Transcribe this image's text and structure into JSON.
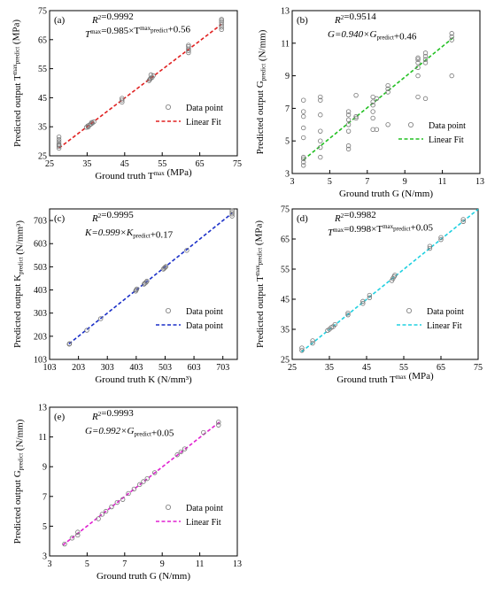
{
  "chart_data": [
    {
      "id": "a",
      "type": "scatter",
      "panel_label": "(a)",
      "xlabel": "Ground truth T^max (MPa)",
      "ylabel": "Predicted output T^max_predict (MPa)",
      "xlim": [
        25,
        75
      ],
      "ylim": [
        25,
        75
      ],
      "xticks": [
        25,
        35,
        45,
        55,
        65,
        75
      ],
      "yticks": [
        25,
        35,
        45,
        55,
        65,
        75
      ],
      "r2_text": "R²=0.9992",
      "eq_text": "T^max=0.985×T^max_predict+0.56",
      "fit": {
        "slope": 0.985,
        "intercept": 0.56,
        "x_range": [
          27.5,
          70.8
        ],
        "color": "#e02020"
      },
      "legend": [
        {
          "label": "Data point",
          "kind": "marker"
        },
        {
          "label": "Linear Fit",
          "kind": "line"
        }
      ],
      "points": [
        [
          27.5,
          27.6
        ],
        [
          27.5,
          28.3
        ],
        [
          27.5,
          29.0
        ],
        [
          27.5,
          29.8
        ],
        [
          27.5,
          30.6
        ],
        [
          27.5,
          31.5
        ],
        [
          27.5,
          28.7
        ],
        [
          34.8,
          34.8
        ],
        [
          35.2,
          35.3
        ],
        [
          35.6,
          35.6
        ],
        [
          36.0,
          35.9
        ],
        [
          36.4,
          36.3
        ],
        [
          36.8,
          36.7
        ],
        [
          35.3,
          34.9
        ],
        [
          36.2,
          36.5
        ],
        [
          44.3,
          43.5
        ],
        [
          44.3,
          44.2
        ],
        [
          44.3,
          44.8
        ],
        [
          51.5,
          50.9
        ],
        [
          51.9,
          51.7
        ],
        [
          52.3,
          52.0
        ],
        [
          52.6,
          52.6
        ],
        [
          52.0,
          52.9
        ],
        [
          51.7,
          51.3
        ],
        [
          62.0,
          60.5
        ],
        [
          62.0,
          61.2
        ],
        [
          62.0,
          61.8
        ],
        [
          62.0,
          62.6
        ],
        [
          62.0,
          63.1
        ],
        [
          70.8,
          68.5
        ],
        [
          70.8,
          69.3
        ],
        [
          70.8,
          70.1
        ],
        [
          70.8,
          70.9
        ],
        [
          70.8,
          71.5
        ],
        [
          70.8,
          72.0
        ]
      ]
    },
    {
      "id": "b",
      "type": "scatter",
      "panel_label": "(b)",
      "xlabel": "Ground truth G (N/mm)",
      "ylabel": "Predicted output G_predict (N/mm)",
      "xlim": [
        3,
        13
      ],
      "ylim": [
        3,
        13
      ],
      "xticks": [
        3,
        5,
        7,
        9,
        11,
        13
      ],
      "yticks": [
        3,
        5,
        7,
        9,
        11,
        13
      ],
      "r2_text": "R²=0.9514",
      "eq_text": "G=0.940×G_predict+0.46",
      "fit": {
        "slope": 0.94,
        "intercept": 0.46,
        "x_range": [
          3.6,
          11.6
        ],
        "color": "#22c022"
      },
      "legend": [
        {
          "label": "Data point",
          "kind": "marker"
        },
        {
          "label": "Linear Fit",
          "kind": "line"
        }
      ],
      "points": [
        [
          3.6,
          3.5
        ],
        [
          3.6,
          3.7
        ],
        [
          3.6,
          3.9
        ],
        [
          3.6,
          4.0
        ],
        [
          3.6,
          5.2
        ],
        [
          3.6,
          5.8
        ],
        [
          3.6,
          6.5
        ],
        [
          3.6,
          6.8
        ],
        [
          3.6,
          7.5
        ],
        [
          4.5,
          4.0
        ],
        [
          4.5,
          4.6
        ],
        [
          4.5,
          5.0
        ],
        [
          4.5,
          5.6
        ],
        [
          4.5,
          6.6
        ],
        [
          4.5,
          7.5
        ],
        [
          4.5,
          7.7
        ],
        [
          6.0,
          4.5
        ],
        [
          6.0,
          4.7
        ],
        [
          6.0,
          5.6
        ],
        [
          6.0,
          6.0
        ],
        [
          6.0,
          6.3
        ],
        [
          6.0,
          6.6
        ],
        [
          6.0,
          6.8
        ],
        [
          6.4,
          6.4
        ],
        [
          6.4,
          6.5
        ],
        [
          6.4,
          7.8
        ],
        [
          7.3,
          5.7
        ],
        [
          7.3,
          6.4
        ],
        [
          7.3,
          6.8
        ],
        [
          7.3,
          7.2
        ],
        [
          7.3,
          7.4
        ],
        [
          7.3,
          7.7
        ],
        [
          7.5,
          5.7
        ],
        [
          7.5,
          7.6
        ],
        [
          8.1,
          6.0
        ],
        [
          8.1,
          8.0
        ],
        [
          8.1,
          8.2
        ],
        [
          8.1,
          8.4
        ],
        [
          9.7,
          7.7
        ],
        [
          9.7,
          9.0
        ],
        [
          9.7,
          9.5
        ],
        [
          9.7,
          9.8
        ],
        [
          9.7,
          10.0
        ],
        [
          9.7,
          10.1
        ],
        [
          10.1,
          7.6
        ],
        [
          10.1,
          9.8
        ],
        [
          10.1,
          10.0
        ],
        [
          10.1,
          10.2
        ],
        [
          10.1,
          10.4
        ],
        [
          11.5,
          9.0
        ],
        [
          11.5,
          11.2
        ],
        [
          11.5,
          11.4
        ],
        [
          11.5,
          11.6
        ]
      ]
    },
    {
      "id": "c",
      "type": "scatter",
      "panel_label": "(c)",
      "xlabel": "Ground truth K (N/mm³)",
      "ylabel": "Predicted output K_predict (N/mm³)",
      "xlim": [
        103,
        753
      ],
      "ylim": [
        103,
        753
      ],
      "xticks": [
        103,
        203,
        303,
        403,
        503,
        603,
        703
      ],
      "yticks": [
        103,
        203,
        303,
        403,
        503,
        603,
        703
      ],
      "r2_text": "R²=0.9995",
      "eq_text": "K=0.999×K_predict+0.17",
      "fit": {
        "slope": 0.999,
        "intercept": 0.17,
        "x_range": [
          170,
          735
        ],
        "color": "#1a2fc8"
      },
      "legend": [
        {
          "label": "Data point",
          "kind": "marker"
        },
        {
          "label": "Data point",
          "kind": "line"
        }
      ],
      "points": [
        [
          171,
          169
        ],
        [
          172,
          171
        ],
        [
          232,
          229
        ],
        [
          280,
          279
        ],
        [
          401,
          398
        ],
        [
          403,
          403
        ],
        [
          405,
          407
        ],
        [
          430,
          428
        ],
        [
          433,
          432
        ],
        [
          437,
          436
        ],
        [
          440,
          441
        ],
        [
          497,
          493
        ],
        [
          500,
          497
        ],
        [
          503,
          501
        ],
        [
          506,
          504
        ],
        [
          578,
          574
        ],
        [
          735,
          722
        ],
        [
          735,
          731
        ],
        [
          735,
          738
        ],
        [
          735,
          745
        ]
      ]
    },
    {
      "id": "d",
      "type": "scatter",
      "panel_label": "(d)",
      "xlabel": "Ground truth T^max (MPa)",
      "ylabel": "Predicted output T^max_predict (MPa)",
      "xlim": [
        25,
        75
      ],
      "ylim": [
        25,
        75
      ],
      "xticks": [
        25,
        35,
        45,
        55,
        65,
        75
      ],
      "yticks": [
        25,
        35,
        45,
        55,
        65,
        75
      ],
      "r2_text": "R²=0.9982",
      "eq_text": "T^max=0.998×T^max_predict+0.05",
      "fit": {
        "slope": 0.998,
        "intercept": 0.05,
        "x_range": [
          27.5,
          75
        ],
        "color": "#20d0e0"
      },
      "legend": [
        {
          "label": "Data point",
          "kind": "marker"
        },
        {
          "label": "Linear Fit",
          "kind": "line"
        }
      ],
      "points": [
        [
          27.6,
          28.0
        ],
        [
          27.6,
          28.8
        ],
        [
          30.5,
          30.4
        ],
        [
          30.5,
          31.2
        ],
        [
          34.5,
          34.6
        ],
        [
          35.0,
          35.0
        ],
        [
          35.5,
          35.6
        ],
        [
          36.0,
          35.9
        ],
        [
          36.5,
          36.6
        ],
        [
          40.0,
          39.8
        ],
        [
          40.0,
          40.4
        ],
        [
          44.0,
          43.6
        ],
        [
          44.0,
          44.3
        ],
        [
          45.8,
          45.5
        ],
        [
          45.8,
          46.3
        ],
        [
          51.8,
          51.2
        ],
        [
          52.1,
          51.9
        ],
        [
          52.4,
          52.5
        ],
        [
          52.6,
          53.0
        ],
        [
          62.0,
          61.9
        ],
        [
          62.0,
          62.6
        ],
        [
          65.0,
          64.8
        ],
        [
          65.0,
          65.5
        ],
        [
          71.0,
          70.8
        ],
        [
          71.0,
          71.5
        ]
      ]
    },
    {
      "id": "e",
      "type": "scatter",
      "panel_label": "(e)",
      "xlabel": "Ground truth G (N/mm)",
      "ylabel": "Predicted output G_predict (N/mm)",
      "xlim": [
        3,
        13
      ],
      "ylim": [
        3,
        13
      ],
      "xticks": [
        3,
        5,
        7,
        9,
        11,
        13
      ],
      "yticks": [
        3,
        5,
        7,
        9,
        11,
        13
      ],
      "r2_text": "R²=0.9993",
      "eq_text": "G=0.992×G_predict+0.05",
      "fit": {
        "slope": 0.992,
        "intercept": 0.05,
        "x_range": [
          3.7,
          12.1
        ],
        "color": "#e020d0"
      },
      "legend": [
        {
          "label": "Data point",
          "kind": "marker"
        },
        {
          "label": "Linear Fit",
          "kind": "line"
        }
      ],
      "points": [
        [
          3.8,
          3.8
        ],
        [
          4.2,
          4.2
        ],
        [
          4.5,
          4.4
        ],
        [
          4.5,
          4.6
        ],
        [
          5.6,
          5.5
        ],
        [
          5.8,
          5.8
        ],
        [
          6.0,
          6.0
        ],
        [
          6.3,
          6.3
        ],
        [
          6.6,
          6.6
        ],
        [
          6.9,
          6.8
        ],
        [
          7.2,
          7.2
        ],
        [
          7.5,
          7.5
        ],
        [
          7.8,
          7.8
        ],
        [
          8.0,
          8.0
        ],
        [
          8.2,
          8.2
        ],
        [
          8.6,
          8.6
        ],
        [
          9.8,
          9.8
        ],
        [
          10.0,
          10.0
        ],
        [
          10.2,
          10.2
        ],
        [
          11.2,
          11.3
        ],
        [
          12.0,
          11.8
        ],
        [
          12.0,
          12.0
        ]
      ]
    }
  ]
}
